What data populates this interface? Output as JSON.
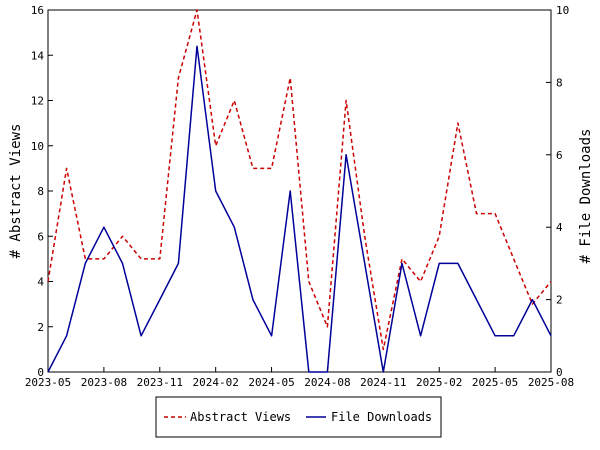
{
  "chart_data": {
    "type": "line",
    "title": "",
    "xlabel": "",
    "ylabel_left": "# Abstract Views",
    "ylabel_right": "# File Downloads",
    "x_months": [
      "2023-05",
      "2023-06",
      "2023-07",
      "2023-08",
      "2023-09",
      "2023-10",
      "2023-11",
      "2023-12",
      "2024-01",
      "2024-02",
      "2024-03",
      "2024-04",
      "2024-05",
      "2024-06",
      "2024-07",
      "2024-08",
      "2024-09",
      "2024-10",
      "2024-11",
      "2024-12",
      "2025-01",
      "2025-02",
      "2025-03",
      "2025-04",
      "2025-05",
      "2025-06",
      "2025-07",
      "2025-08"
    ],
    "x_tick_labels": [
      "2023-05",
      "2023-08",
      "2023-11",
      "2024-02",
      "2024-05",
      "2024-08",
      "2024-11",
      "2025-02",
      "2025-05",
      "2025-08"
    ],
    "ylim_left": [
      0,
      16
    ],
    "yticks_left": [
      "0",
      "2",
      "4",
      "6",
      "8",
      "10",
      "12",
      "14",
      "16"
    ],
    "ylim_right": [
      0,
      10
    ],
    "yticks_right": [
      "0",
      "2",
      "4",
      "6",
      "8",
      "10"
    ],
    "series": [
      {
        "name": "Abstract Views",
        "axis": "left",
        "color": "#cc0000",
        "style": "dashed",
        "values": [
          4,
          9,
          5,
          5,
          6,
          5,
          5,
          13,
          16,
          10,
          12,
          9,
          9,
          13,
          4,
          2,
          12,
          6,
          1,
          5,
          4,
          6,
          11,
          7,
          7,
          5,
          3,
          4
        ]
      },
      {
        "name": "File Downloads",
        "axis": "right",
        "color": "#000099",
        "style": "solid",
        "values": [
          0,
          1,
          3,
          4,
          3,
          1,
          2,
          3,
          9,
          5,
          4,
          2,
          1,
          5,
          0,
          0,
          6,
          3,
          0,
          3,
          1,
          3,
          3,
          2,
          1,
          1,
          2,
          1
        ]
      }
    ],
    "legend_position": "bottom",
    "grid": false
  }
}
